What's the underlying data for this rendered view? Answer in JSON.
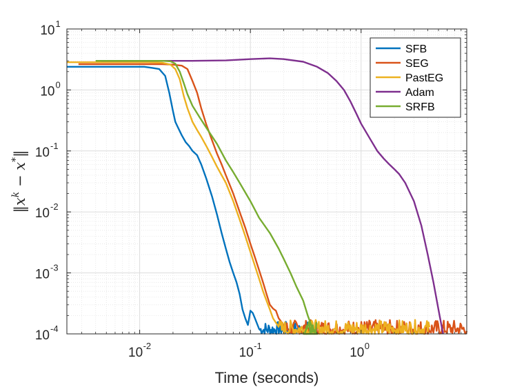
{
  "chart_data": {
    "type": "line",
    "xscale": "log",
    "yscale": "log",
    "xlim": [
      0.0022,
      9.0
    ],
    "ylim": [
      0.0001,
      10
    ],
    "grid": true,
    "minor_grid": true,
    "xlabel": "Time (seconds)",
    "ylabel": "||x^k - x^*||",
    "ylabel_parts": [
      "‖",
      "x",
      "k",
      " − ",
      "x",
      "*",
      "‖"
    ],
    "x_ticks": [
      {
        "base": "10",
        "exp": "-2",
        "value": 0.01
      },
      {
        "base": "10",
        "exp": "-1",
        "value": 0.1
      },
      {
        "base": "10",
        "exp": "0",
        "value": 1
      }
    ],
    "y_ticks": [
      {
        "base": "10",
        "exp": "-4",
        "value": 0.0001
      },
      {
        "base": "10",
        "exp": "-3",
        "value": 0.001
      },
      {
        "base": "10",
        "exp": "-2",
        "value": 0.01
      },
      {
        "base": "10",
        "exp": "-1",
        "value": 0.1
      },
      {
        "base": "10",
        "exp": "0",
        "value": 1
      },
      {
        "base": "10",
        "exp": "1",
        "value": 10
      }
    ],
    "legend_position": "top-right",
    "series": [
      {
        "name": "SFB",
        "color": "#0072BD",
        "x": [
          0.0022,
          0.003,
          0.005,
          0.008,
          0.011,
          0.013,
          0.015,
          0.017,
          0.0185,
          0.02,
          0.021,
          0.022,
          0.024,
          0.026,
          0.028,
          0.03,
          0.033,
          0.036,
          0.04,
          0.045,
          0.05,
          0.055,
          0.06,
          0.065,
          0.07,
          0.075,
          0.08,
          0.085,
          0.09,
          0.095,
          0.1,
          0.105,
          0.11,
          0.12
        ],
        "y": [
          2.4,
          2.4,
          2.4,
          2.4,
          2.4,
          2.3,
          2.2,
          1.7,
          0.9,
          0.45,
          0.3,
          0.25,
          0.18,
          0.14,
          0.12,
          0.1,
          0.085,
          0.06,
          0.035,
          0.018,
          0.009,
          0.0045,
          0.0025,
          0.0015,
          0.001,
          0.0007,
          0.00045,
          0.00025,
          0.00018,
          0.00014,
          0.00024,
          0.00022,
          0.00018,
          0.00012
        ],
        "noise_from": 0.12,
        "noise_to": 0.33,
        "noise_min": 0.0001,
        "noise_max": 0.00016
      },
      {
        "name": "SEG",
        "color": "#D95319",
        "x": [
          0.0028,
          0.005,
          0.008,
          0.012,
          0.016,
          0.02,
          0.024,
          0.027,
          0.03,
          0.033,
          0.036,
          0.04,
          0.045,
          0.05,
          0.055,
          0.06,
          0.07,
          0.08,
          0.09,
          0.1,
          0.11,
          0.12,
          0.13,
          0.14,
          0.15,
          0.16,
          0.17,
          0.18,
          0.2
        ],
        "y": [
          2.65,
          2.65,
          2.65,
          2.65,
          2.65,
          2.6,
          2.5,
          2.2,
          1.4,
          0.9,
          0.5,
          0.27,
          0.15,
          0.09,
          0.06,
          0.04,
          0.02,
          0.01,
          0.0055,
          0.003,
          0.0018,
          0.0011,
          0.0007,
          0.00045,
          0.0003,
          0.00026,
          0.00024,
          0.00018,
          0.00014
        ],
        "noise_from": 0.2,
        "noise_to": 9.0,
        "noise_min": 0.0001,
        "noise_max": 0.00017
      },
      {
        "name": "PastEG",
        "color": "#EDB120",
        "x": [
          0.0022,
          0.005,
          0.008,
          0.012,
          0.016,
          0.019,
          0.021,
          0.023,
          0.025,
          0.027,
          0.03,
          0.033,
          0.036,
          0.04,
          0.045,
          0.05,
          0.055,
          0.06,
          0.07,
          0.08,
          0.09,
          0.1,
          0.11,
          0.12,
          0.13,
          0.14,
          0.15,
          0.16,
          0.18
        ],
        "y": [
          2.85,
          2.85,
          2.85,
          2.85,
          2.8,
          2.6,
          2.2,
          1.5,
          0.8,
          0.5,
          0.3,
          0.22,
          0.17,
          0.12,
          0.08,
          0.055,
          0.04,
          0.03,
          0.015,
          0.0075,
          0.004,
          0.0022,
          0.0013,
          0.0008,
          0.0005,
          0.00035,
          0.00025,
          0.00018,
          0.00013
        ],
        "noise_from": 0.18,
        "noise_to": 4.2,
        "noise_min": 0.0001,
        "noise_max": 0.00017
      },
      {
        "name": "Adam",
        "color": "#7E2F8E",
        "x": [
          0.0045,
          0.01,
          0.03,
          0.06,
          0.1,
          0.15,
          0.2,
          0.3,
          0.4,
          0.5,
          0.6,
          0.7,
          0.8,
          0.9,
          1.0,
          1.2,
          1.4,
          1.6,
          1.8,
          2.0,
          2.2,
          2.5,
          3.0,
          3.5,
          4.0,
          4.5,
          5.0,
          5.5
        ],
        "y": [
          3.0,
          3.0,
          3.0,
          3.05,
          3.2,
          3.3,
          3.2,
          2.9,
          2.4,
          1.9,
          1.4,
          1.0,
          0.65,
          0.42,
          0.28,
          0.16,
          0.1,
          0.075,
          0.06,
          0.05,
          0.042,
          0.03,
          0.015,
          0.006,
          0.002,
          0.0007,
          0.00025,
          0.0001
        ],
        "noise_from": 0,
        "noise_to": 0,
        "noise_min": 0,
        "noise_max": 0
      },
      {
        "name": "SRFB",
        "color": "#77AC30",
        "x": [
          0.004,
          0.008,
          0.012,
          0.016,
          0.019,
          0.021,
          0.023,
          0.025,
          0.027,
          0.03,
          0.035,
          0.04,
          0.05,
          0.06,
          0.07,
          0.08,
          0.1,
          0.12,
          0.15,
          0.18,
          0.2,
          0.23,
          0.26,
          0.3,
          0.33,
          0.36,
          0.4
        ],
        "y": [
          3.0,
          3.0,
          3.0,
          3.0,
          2.95,
          2.7,
          2.0,
          1.3,
          0.85,
          0.55,
          0.35,
          0.24,
          0.13,
          0.07,
          0.045,
          0.03,
          0.015,
          0.008,
          0.0045,
          0.0025,
          0.0017,
          0.001,
          0.0006,
          0.00035,
          0.0002,
          0.00013,
          0.0001
        ],
        "noise_from": 0.3,
        "noise_to": 0.4,
        "noise_min": 0.0001,
        "noise_max": 0.00016
      }
    ]
  }
}
